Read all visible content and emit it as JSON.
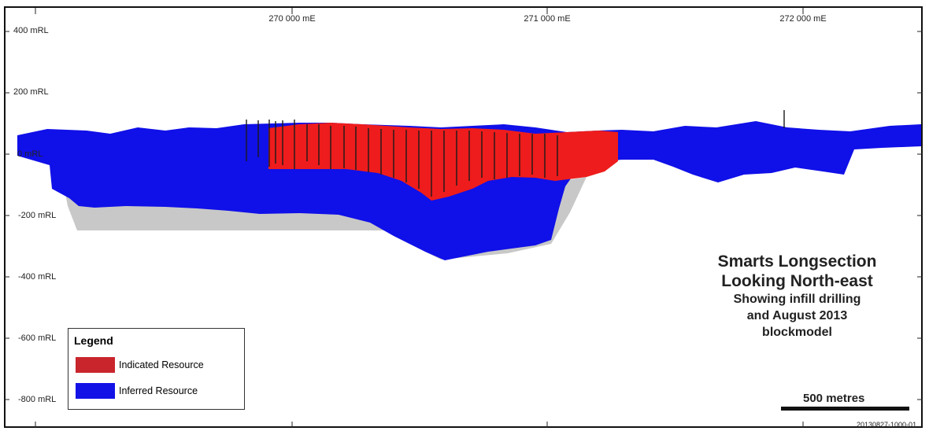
{
  "y_axis_labels": [
    "400 mRL",
    "200 mRL",
    "0 mRL",
    "-200 mRL",
    "-400 mRL",
    "-600 mRL",
    "-800 mRL"
  ],
  "x_axis_labels": [
    "270 000 mE",
    "271 000 mE",
    "272 000 mE"
  ],
  "title": {
    "line1": "Smarts Longsection",
    "line2": "Looking North-east",
    "line3": "Showing infill drilling",
    "line4": "and August 2013",
    "line5": "blockmodel"
  },
  "legend": {
    "title": "Legend",
    "items": [
      {
        "label": "Indicated Resource",
        "color": "#c8262c"
      },
      {
        "label": "Inferred Resource",
        "color": "#1212e6"
      }
    ]
  },
  "scale_bar": {
    "label": "500 metres"
  },
  "reference_code": "20130827-1000-01",
  "colors": {
    "indicated": "#ee1c1c",
    "inferred": "#1010e8",
    "envelope": "#c8c8c8",
    "drillholes": "#1a1a1a"
  }
}
